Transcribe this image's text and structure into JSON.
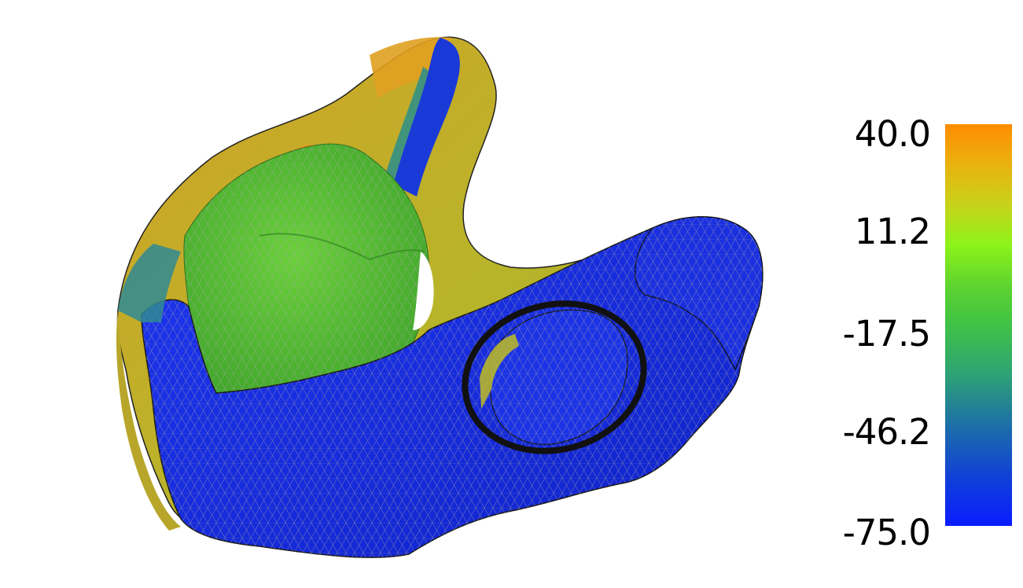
{
  "colorbar": {
    "ticks": [
      "40.0",
      "11.2",
      "-17.5",
      "-46.2",
      "-75.0"
    ],
    "colors": [
      "#ff8c00",
      "#e9b20f",
      "#8ef31a",
      "#3fc246",
      "#1d6fa8",
      "#0a1cff"
    ]
  },
  "mesh": {
    "description_colors": {
      "high": "#e5a51c",
      "mid": "#5dc92e",
      "low": "#1428e8",
      "edge": "#b0b0b0"
    }
  }
}
